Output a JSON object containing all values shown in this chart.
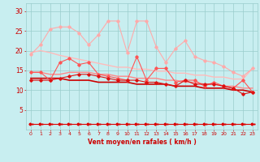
{
  "x": [
    0,
    1,
    2,
    3,
    4,
    5,
    6,
    7,
    8,
    9,
    10,
    11,
    12,
    13,
    14,
    15,
    16,
    17,
    18,
    19,
    20,
    21,
    22,
    23
  ],
  "lines": [
    {
      "y": [
        19.0,
        21.5,
        25.5,
        26.0,
        26.0,
        24.5,
        21.5,
        24.0,
        27.5,
        27.5,
        19.5,
        27.5,
        27.5,
        21.0,
        17.0,
        20.5,
        22.5,
        18.5,
        17.5,
        17.0,
        16.0,
        14.5,
        13.5,
        15.5
      ],
      "color": "#ffaaaa",
      "lw": 0.8,
      "marker": "D",
      "ms": 1.8,
      "zorder": 3
    },
    {
      "y": [
        19.5,
        20.0,
        19.5,
        18.8,
        18.3,
        17.8,
        17.3,
        16.8,
        16.3,
        15.8,
        15.8,
        15.3,
        15.3,
        14.8,
        14.8,
        14.3,
        14.3,
        13.8,
        13.8,
        13.3,
        13.3,
        12.8,
        12.8,
        15.5
      ],
      "color": "#ffbbbb",
      "lw": 1.0,
      "marker": null,
      "ms": 0,
      "zorder": 2
    },
    {
      "y": [
        14.5,
        14.5,
        12.5,
        17.0,
        18.0,
        16.5,
        17.0,
        14.0,
        13.5,
        13.0,
        12.5,
        18.5,
        12.5,
        15.5,
        15.5,
        12.0,
        12.5,
        12.5,
        11.0,
        12.0,
        11.0,
        10.5,
        12.5,
        9.5
      ],
      "color": "#ff5555",
      "lw": 0.8,
      "marker": "D",
      "ms": 1.8,
      "zorder": 3
    },
    {
      "y": [
        14.5,
        14.5,
        14.0,
        14.0,
        14.5,
        14.5,
        14.5,
        14.0,
        14.0,
        13.5,
        13.5,
        13.0,
        13.0,
        13.0,
        12.5,
        12.5,
        12.0,
        12.0,
        11.5,
        11.5,
        11.0,
        11.0,
        10.5,
        10.5
      ],
      "color": "#ff8888",
      "lw": 1.0,
      "marker": null,
      "ms": 0,
      "zorder": 2
    },
    {
      "y": [
        12.5,
        12.5,
        12.5,
        13.0,
        13.5,
        14.0,
        14.0,
        13.5,
        13.0,
        12.5,
        12.5,
        12.5,
        12.0,
        12.0,
        11.5,
        11.0,
        12.5,
        11.5,
        11.5,
        11.5,
        11.0,
        10.5,
        9.0,
        9.5
      ],
      "color": "#dd1111",
      "lw": 0.8,
      "marker": "D",
      "ms": 1.8,
      "zorder": 3
    },
    {
      "y": [
        13.0,
        13.0,
        13.0,
        13.0,
        12.5,
        12.5,
        12.5,
        12.0,
        12.0,
        12.0,
        12.0,
        11.5,
        11.5,
        11.5,
        11.5,
        11.0,
        11.0,
        11.0,
        10.5,
        10.5,
        10.5,
        10.0,
        10.0,
        9.5
      ],
      "color": "#cc0000",
      "lw": 1.2,
      "marker": null,
      "ms": 0,
      "zorder": 2
    },
    {
      "y": [
        1.5,
        1.5,
        1.5,
        1.5,
        1.5,
        1.5,
        1.5,
        1.5,
        1.5,
        1.5,
        1.5,
        1.5,
        1.5,
        1.5,
        1.5,
        1.5,
        1.5,
        1.5,
        1.5,
        1.5,
        1.5,
        1.5,
        1.5,
        1.5
      ],
      "color": "#dd0000",
      "lw": 0.8,
      "marker": "$\\leftarrow$",
      "ms": 3.5,
      "zorder": 3
    }
  ],
  "xlabel": "Vent moyen/en rafales ( km/h )",
  "ylim": [
    0,
    32
  ],
  "xlim": [
    -0.5,
    23.5
  ],
  "yticks": [
    5,
    10,
    15,
    20,
    25,
    30
  ],
  "xticks": [
    0,
    1,
    2,
    3,
    4,
    5,
    6,
    7,
    8,
    9,
    10,
    11,
    12,
    13,
    14,
    15,
    16,
    17,
    18,
    19,
    20,
    21,
    22,
    23
  ],
  "bg_color": "#c8eef0",
  "grid_color": "#99cccc",
  "tick_color": "#cc0000",
  "label_color": "#cc0000"
}
